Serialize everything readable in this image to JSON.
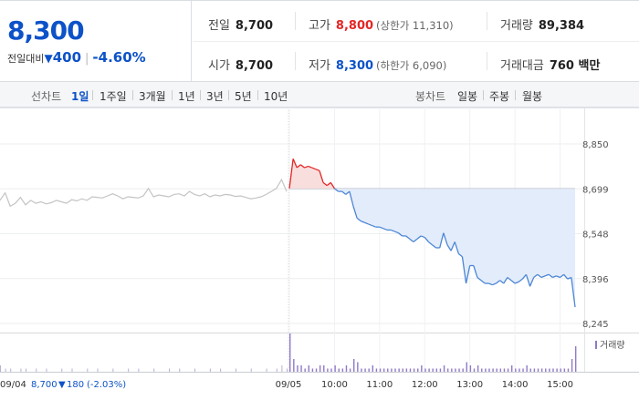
{
  "summary": {
    "price": "8,300",
    "change_label": "전일대비",
    "change_icon": "down-triangle-icon",
    "change_amount": "400",
    "change_pct": "-4.60%",
    "stats": {
      "prev_close": {
        "label": "전일",
        "value": "8,700"
      },
      "open": {
        "label": "시가",
        "value": "8,700"
      },
      "high": {
        "label": "고가",
        "value": "8,800",
        "limit": "(상한가 11,310)"
      },
      "low": {
        "label": "저가",
        "value": "8,300",
        "limit": "(하한가 6,090)"
      },
      "volume": {
        "label": "거래량",
        "value": "89,384"
      },
      "amount": {
        "label": "거래대금",
        "value": "760 백만"
      }
    }
  },
  "line_tabs": {
    "caption": "선차트",
    "items": [
      "1일",
      "1주일",
      "3개월",
      "1년",
      "3년",
      "5년",
      "10년"
    ],
    "active": 0
  },
  "candle_tabs": {
    "caption": "봉차트",
    "items": [
      "일봉",
      "주봉",
      "월봉"
    ]
  },
  "colors": {
    "up": "#e32626",
    "down": "#0d52c8",
    "line_blue": "#4b86d6",
    "fill_blue": "#e3ecfa",
    "fill_red": "#f9dede",
    "prev_line": "#c4c4c4",
    "volume_bar": "#8f7ac9"
  },
  "chart_data": {
    "type": "line",
    "y_ticks": [
      "8,850",
      "8,699",
      "8,548",
      "8,396",
      "8,245"
    ],
    "ylim": [
      8245,
      8850
    ],
    "base_price": 8699,
    "x_ticks": [
      "09/05",
      "10:00",
      "11:00",
      "12:00",
      "13:00",
      "14:00",
      "15:00"
    ],
    "prev_day_label": "09/04",
    "prev_day_info": {
      "close": "8,700",
      "change_icon": "down-triangle-icon",
      "change": "180",
      "pct": "(-2.03%)"
    },
    "volume_legend": "거래량",
    "series": [
      {
        "day": "09/04",
        "values": [
          8660,
          8685,
          8640,
          8650,
          8670,
          8645,
          8660,
          8650,
          8655,
          8648,
          8652,
          8660,
          8655,
          8650,
          8662,
          8658,
          8665,
          8660,
          8672,
          8670,
          8668,
          8675,
          8682,
          8675,
          8665,
          8672,
          8670,
          8668,
          8675,
          8700,
          8672,
          8678,
          8675,
          8672,
          8680,
          8682,
          8675,
          8690,
          8680,
          8675,
          8682,
          8672,
          8678,
          8675,
          8680,
          8678,
          8673,
          8675,
          8670,
          8665,
          8668,
          8672,
          8680,
          8690,
          8700,
          8730,
          8690
        ]
      },
      {
        "day": "09/05",
        "times": [
          "09:00",
          "09:05",
          "09:10",
          "09:15",
          "09:20",
          "09:25",
          "09:30",
          "09:35",
          "09:40",
          "09:45",
          "09:50",
          "09:55",
          "10:00",
          "10:05",
          "10:10",
          "10:15",
          "10:20",
          "10:25",
          "10:30",
          "10:35",
          "10:40",
          "10:45",
          "10:50",
          "10:55",
          "11:00",
          "11:05",
          "11:10",
          "11:15",
          "11:20",
          "11:25",
          "11:30",
          "11:35",
          "11:40",
          "11:45",
          "11:50",
          "11:55",
          "12:00",
          "12:05",
          "12:10",
          "12:15",
          "12:20",
          "12:25",
          "12:30",
          "12:35",
          "12:40",
          "12:45",
          "12:50",
          "12:55",
          "13:00",
          "13:05",
          "13:10",
          "13:15",
          "13:20",
          "13:25",
          "13:30",
          "13:35",
          "13:40",
          "13:45",
          "13:50",
          "13:55",
          "14:00",
          "14:05",
          "14:10",
          "14:15",
          "14:20",
          "14:25",
          "14:30",
          "14:35",
          "14:40",
          "14:45",
          "14:50",
          "14:55",
          "15:00",
          "15:05",
          "15:10",
          "15:15",
          "15:20"
        ],
        "values": [
          8700,
          8800,
          8770,
          8780,
          8770,
          8775,
          8770,
          8765,
          8760,
          8720,
          8710,
          8720,
          8700,
          8690,
          8690,
          8680,
          8690,
          8640,
          8600,
          8590,
          8585,
          8580,
          8575,
          8570,
          8570,
          8565,
          8560,
          8560,
          8555,
          8550,
          8540,
          8540,
          8530,
          8520,
          8530,
          8540,
          8535,
          8520,
          8510,
          8500,
          8500,
          8550,
          8510,
          8490,
          8520,
          8480,
          8470,
          8380,
          8440,
          8440,
          8400,
          8390,
          8380,
          8380,
          8375,
          8380,
          8390,
          8380,
          8400,
          8390,
          8380,
          8385,
          8395,
          8410,
          8370,
          8400,
          8410,
          8400,
          8405,
          8410,
          8400,
          8405,
          8400,
          8410,
          8395,
          8400,
          8300
        ]
      }
    ],
    "volume": {
      "prev_day": [
        2,
        1,
        1,
        0,
        1,
        1,
        0,
        1,
        0,
        1,
        0,
        0,
        1,
        0,
        1,
        0,
        0,
        1,
        0,
        1,
        0,
        0,
        1,
        0,
        0,
        1,
        0,
        1,
        0,
        0,
        1,
        0,
        0,
        1,
        0,
        1,
        0,
        0,
        1,
        0,
        0,
        1,
        0,
        1,
        0,
        0,
        1,
        0,
        0,
        1,
        0,
        0,
        1,
        0,
        1,
        2,
        1
      ],
      "today": [
        12,
        4,
        2,
        2,
        1,
        2,
        1,
        1,
        2,
        2,
        1,
        1,
        2,
        1,
        1,
        2,
        1,
        4,
        3,
        1,
        1,
        1,
        2,
        1,
        1,
        1,
        1,
        1,
        1,
        1,
        1,
        1,
        1,
        1,
        1,
        2,
        1,
        1,
        1,
        1,
        1,
        2,
        1,
        1,
        1,
        1,
        1,
        3,
        2,
        1,
        2,
        1,
        1,
        1,
        1,
        1,
        1,
        1,
        1,
        2,
        1,
        1,
        1,
        2,
        1,
        1,
        1,
        1,
        1,
        1,
        1,
        1,
        1,
        1,
        1,
        4,
        8
      ]
    }
  }
}
